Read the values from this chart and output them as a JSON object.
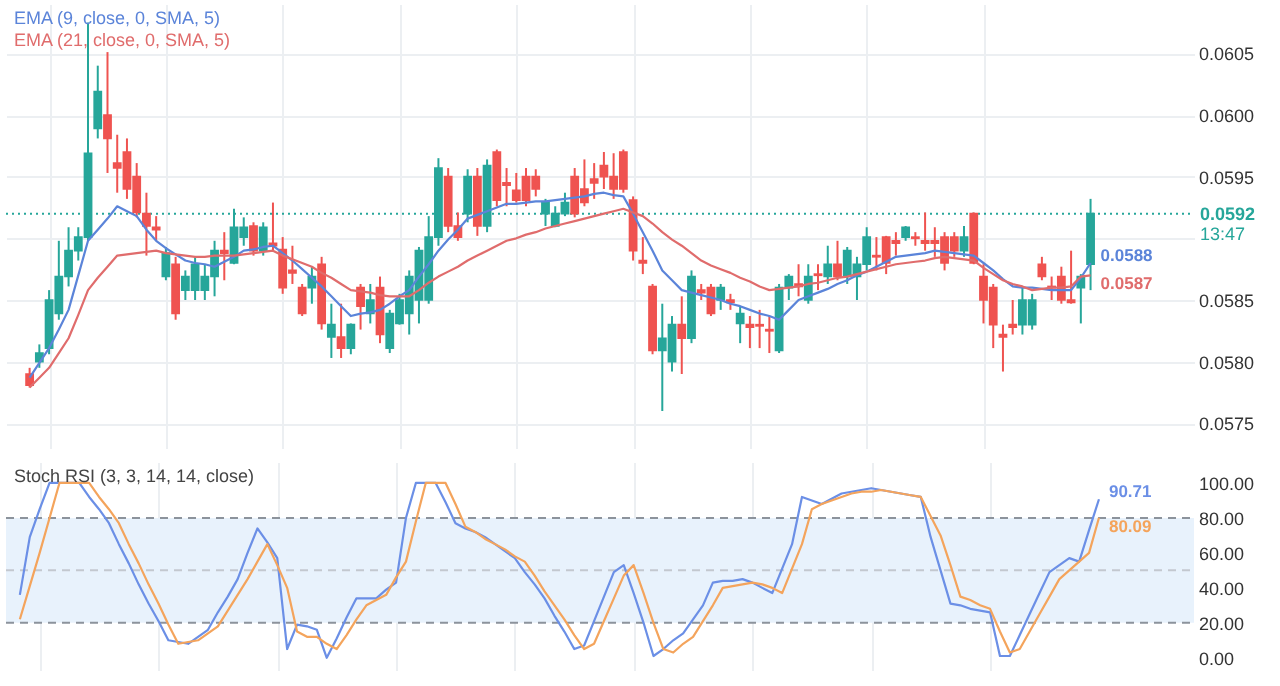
{
  "chart_data": [
    {
      "type": "candlestick",
      "categories": [
        null,
        null,
        null,
        null,
        null,
        null,
        null,
        null,
        null,
        null,
        null,
        null,
        null,
        null,
        null,
        null,
        null,
        null,
        null,
        null,
        null,
        null,
        null,
        null,
        null,
        null,
        null,
        null,
        null,
        null,
        null,
        null,
        null,
        null,
        null,
        null,
        null,
        null,
        null,
        null,
        null,
        null,
        null,
        null,
        null,
        null,
        null,
        null,
        null,
        null,
        null,
        null,
        null,
        null,
        null,
        null,
        null,
        null,
        null,
        null,
        null,
        null,
        null,
        null,
        null,
        null,
        null,
        null,
        null,
        null,
        null,
        null,
        null,
        null,
        null,
        null,
        null,
        null,
        null,
        null,
        null,
        null,
        null,
        null,
        null,
        null,
        null,
        null,
        null,
        null,
        null,
        null,
        null,
        null,
        null,
        null,
        null,
        null,
        null,
        null,
        null,
        null,
        null,
        null,
        null,
        null,
        null,
        null,
        null,
        null
      ],
      "ohlc": [
        [
          0.0579,
          0.05795,
          0.05779,
          0.05781
        ],
        [
          0.058,
          0.05814,
          0.05795,
          0.05807
        ],
        [
          0.05811,
          0.05858,
          0.05806,
          0.0585
        ],
        [
          0.05839,
          0.05898,
          0.05834,
          0.05869
        ],
        [
          0.05869,
          0.05909,
          0.05861,
          0.0589
        ],
        [
          0.0589,
          0.05909,
          0.05882,
          0.05901
        ],
        [
          0.05901,
          0.06075,
          0.05898,
          0.05969
        ],
        [
          0.05989,
          0.0604,
          0.05981,
          0.06019
        ],
        [
          0.06,
          0.06051,
          0.05953,
          0.05981
        ],
        [
          0.05961,
          0.05984,
          0.05937,
          0.05957
        ],
        [
          0.0597,
          0.05981,
          0.05932,
          0.0594
        ],
        [
          0.0595,
          0.05961,
          0.05917,
          0.05921
        ],
        [
          0.0592,
          0.05937,
          0.05886,
          0.0591
        ],
        [
          0.05909,
          0.05918,
          0.05898,
          0.05907
        ],
        [
          0.05869,
          0.05893,
          0.05866,
          0.05888
        ],
        [
          0.05879,
          0.05885,
          0.05834,
          0.05839
        ],
        [
          0.05858,
          0.05874,
          0.0585,
          0.05869
        ],
        [
          0.05858,
          0.05885,
          0.0585,
          0.05879
        ],
        [
          0.05858,
          0.05879,
          0.0585,
          0.05869
        ],
        [
          0.05869,
          0.05898,
          0.05853,
          0.0589
        ],
        [
          0.0589,
          0.05905,
          0.05866,
          0.05888
        ],
        [
          0.0588,
          0.05924,
          0.05879,
          0.05909
        ],
        [
          0.05901,
          0.05917,
          0.05894,
          0.05909
        ],
        [
          0.0591,
          0.05913,
          0.05886,
          0.0589
        ],
        [
          0.0589,
          0.05913,
          0.05886,
          0.05909
        ],
        [
          0.05896,
          0.05929,
          0.0589,
          0.05894
        ],
        [
          0.05891,
          0.05901,
          0.05855,
          0.0586
        ],
        [
          0.05874,
          0.05894,
          0.05863,
          0.05872
        ],
        [
          0.0586,
          0.05863,
          0.05837,
          0.05839
        ],
        [
          0.0586,
          0.05877,
          0.05847,
          0.05869
        ],
        [
          0.05879,
          0.05885,
          0.05826,
          0.05831
        ],
        [
          0.0582,
          0.05847,
          0.05803,
          0.0583
        ],
        [
          0.0582,
          0.05847,
          0.05803,
          0.05811
        ],
        [
          0.05811,
          0.05831,
          0.05806,
          0.0583
        ],
        [
          0.0586,
          0.05863,
          0.05826,
          0.05845
        ],
        [
          0.05839,
          0.05863,
          0.05831,
          0.0585
        ],
        [
          0.0586,
          0.05869,
          0.05815,
          0.05822
        ],
        [
          0.05811,
          0.05842,
          0.05807,
          0.05839
        ],
        [
          0.05831,
          0.05855,
          0.0583,
          0.0585
        ],
        [
          0.05839,
          0.05874,
          0.05822,
          0.05869
        ],
        [
          0.0585,
          0.05893,
          0.05831,
          0.0589
        ],
        [
          0.0585,
          0.05918,
          0.05847,
          0.05901
        ],
        [
          0.05901,
          0.05965,
          0.05894,
          0.05957
        ],
        [
          0.0595,
          0.05957,
          0.05905,
          0.0591
        ],
        [
          0.0591,
          0.05921,
          0.05898,
          0.05901
        ],
        [
          0.0592,
          0.05956,
          0.05913,
          0.0595
        ],
        [
          0.0595,
          0.05957,
          0.05902,
          0.0591
        ],
        [
          0.0591,
          0.05964,
          0.05905,
          0.05959
        ],
        [
          0.0597,
          0.05972,
          0.05926,
          0.05931
        ],
        [
          0.05945,
          0.05957,
          0.05926,
          0.05943
        ],
        [
          0.05939,
          0.05953,
          0.05929,
          0.05931
        ],
        [
          0.0595,
          0.05957,
          0.05926,
          0.05931
        ],
        [
          0.0595,
          0.05956,
          0.05934,
          0.0594
        ],
        [
          0.0592,
          0.05932,
          0.0591,
          0.05929
        ],
        [
          0.0591,
          0.05926,
          0.05909,
          0.0592
        ],
        [
          0.0592,
          0.05937,
          0.05918,
          0.05929
        ],
        [
          0.0595,
          0.05957,
          0.05917,
          0.0592
        ],
        [
          0.0594,
          0.05964,
          0.05926,
          0.05929
        ],
        [
          0.05948,
          0.05961,
          0.05932,
          0.05945
        ],
        [
          0.05959,
          0.0597,
          0.0594,
          0.0595
        ],
        [
          0.0595,
          0.05969,
          0.05932,
          0.0594
        ],
        [
          0.0597,
          0.05972,
          0.05937,
          0.0594
        ],
        [
          0.05931,
          0.05934,
          0.05882,
          0.0589
        ],
        [
          0.05882,
          0.05901,
          0.05871,
          0.0588
        ],
        [
          0.05861,
          0.05863,
          0.05806,
          0.05809
        ],
        [
          0.05809,
          0.05847,
          0.0576,
          0.05819
        ],
        [
          0.058,
          0.05837,
          0.05792,
          0.0583
        ],
        [
          0.0583,
          0.05853,
          0.0579,
          0.05819
        ],
        [
          0.05819,
          0.05874,
          0.05815,
          0.05869
        ],
        [
          0.05858,
          0.05863,
          0.0585,
          0.05856
        ],
        [
          0.0586,
          0.05863,
          0.05837,
          0.05839
        ],
        [
          0.0585,
          0.05863,
          0.05842,
          0.0586
        ],
        [
          0.0585,
          0.05855,
          0.05842,
          0.05848
        ],
        [
          0.05831,
          0.05845,
          0.05815,
          0.05839
        ],
        [
          0.0583,
          0.05837,
          0.05811,
          0.05828
        ],
        [
          0.0583,
          0.05842,
          0.05811,
          0.05829
        ],
        [
          0.05826,
          0.05837,
          0.05807,
          0.05825
        ],
        [
          0.05809,
          0.05863,
          0.05807,
          0.0586
        ],
        [
          0.0586,
          0.05871,
          0.0585,
          0.05869
        ],
        [
          0.05863,
          0.05879,
          0.05853,
          0.05861
        ],
        [
          0.0585,
          0.05879,
          0.05847,
          0.05869
        ],
        [
          0.05871,
          0.05879,
          0.05858,
          0.0587
        ],
        [
          0.05869,
          0.05894,
          0.05863,
          0.05879
        ],
        [
          0.05879,
          0.05898,
          0.05866,
          0.05869
        ],
        [
          0.05869,
          0.05893,
          0.05863,
          0.0589
        ],
        [
          0.05869,
          0.05885,
          0.0585,
          0.05879
        ],
        [
          0.05879,
          0.05909,
          0.05874,
          0.05901
        ],
        [
          0.05886,
          0.05901,
          0.05874,
          0.05885
        ],
        [
          0.05901,
          0.05902,
          0.05871,
          0.0588
        ],
        [
          0.05898,
          0.05905,
          0.05886,
          0.05896
        ],
        [
          0.05901,
          0.0591,
          0.05898,
          0.05909
        ],
        [
          0.05901,
          0.05905,
          0.05894,
          0.059
        ],
        [
          0.05898,
          0.05921,
          0.0589,
          0.05896
        ],
        [
          0.05898,
          0.05909,
          0.05885,
          0.05896
        ],
        [
          0.05901,
          0.05905,
          0.05874,
          0.0588
        ],
        [
          0.05901,
          0.05905,
          0.05885,
          0.0589
        ],
        [
          0.0589,
          0.0591,
          0.05885,
          0.05901
        ],
        [
          0.0592,
          0.05921,
          0.05879,
          0.0588
        ],
        [
          0.05869,
          0.05879,
          0.05831,
          0.0585
        ],
        [
          0.0586,
          0.05863,
          0.05811,
          0.0583
        ],
        [
          0.05822,
          0.0583,
          0.05792,
          0.0582
        ],
        [
          0.0583,
          0.0585,
          0.05822,
          0.05828
        ],
        [
          0.0583,
          0.05861,
          0.05822,
          0.0585
        ],
        [
          0.0583,
          0.05855,
          0.05826,
          0.0585
        ],
        [
          0.05879,
          0.05885,
          0.05866,
          0.05869
        ],
        [
          0.05861,
          0.05869,
          0.0585,
          0.0586
        ],
        [
          0.05869,
          0.05877,
          0.05847,
          0.0585
        ],
        [
          0.0585,
          0.0589,
          0.05847,
          0.05848
        ],
        [
          0.0586,
          0.05871,
          0.05831,
          0.05869
        ],
        [
          0.05879,
          0.05932,
          0.05858,
          0.0592
        ]
      ],
      "colors": [
        "#ef5350",
        "#26a69a",
        "#26a69a",
        "#26a69a",
        "#26a69a",
        "#26a69a",
        "#26a69a",
        "#26a69a",
        "#ef5350",
        "#ef5350",
        "#ef5350",
        "#ef5350",
        "#ef5350",
        "#ef5350",
        "#26a69a",
        "#ef5350",
        "#26a69a",
        "#26a69a",
        "#26a69a",
        "#26a69a",
        "#ef5350",
        "#26a69a",
        "#26a69a",
        "#ef5350",
        "#26a69a",
        "#ef5350",
        "#ef5350",
        "#ef5350",
        "#ef5350",
        "#26a69a",
        "#ef5350",
        "#26a69a",
        "#ef5350",
        "#26a69a",
        "#ef5350",
        "#26a69a",
        "#ef5350",
        "#26a69a",
        "#26a69a",
        "#26a69a",
        "#26a69a",
        "#26a69a",
        "#26a69a",
        "#ef5350",
        "#ef5350",
        "#26a69a",
        "#ef5350",
        "#26a69a",
        "#ef5350",
        "#ef5350",
        "#ef5350",
        "#ef5350",
        "#ef5350",
        "#26a69a",
        "#26a69a",
        "#26a69a",
        "#ef5350",
        "#ef5350",
        "#ef5350",
        "#ef5350",
        "#ef5350",
        "#ef5350",
        "#ef5350",
        "#ef5350",
        "#ef5350",
        "#26a69a",
        "#26a69a",
        "#ef5350",
        "#26a69a",
        "#ef5350",
        "#ef5350",
        "#26a69a",
        "#ef5350",
        "#26a69a",
        "#ef5350",
        "#ef5350",
        "#ef5350",
        "#26a69a",
        "#26a69a",
        "#ef5350",
        "#26a69a",
        "#ef5350",
        "#26a69a",
        "#ef5350",
        "#26a69a",
        "#26a69a",
        "#26a69a",
        "#ef5350",
        "#ef5350",
        "#ef5350",
        "#26a69a",
        "#ef5350",
        "#ef5350",
        "#ef5350",
        "#ef5350",
        "#ef5350",
        "#26a69a",
        "#ef5350",
        "#ef5350",
        "#ef5350",
        "#ef5350",
        "#ef5350",
        "#26a69a",
        "#26a69a",
        "#ef5350",
        "#ef5350",
        "#ef5350",
        "#ef5350",
        "#26a69a",
        "#26a69a"
      ],
      "series": [
        {
          "name": "EMA (9, close, 0, SMA, 5)",
          "type": "line",
          "color": "#5b84d9",
          "values": [
            0.05787,
            0.05799,
            0.05811,
            0.05826,
            0.05842,
            0.0587,
            0.05898,
            0.05907,
            0.05916,
            0.05926,
            0.05922,
            0.05918,
            0.05907,
            0.05898,
            0.05892,
            0.05887,
            0.05882,
            0.0588,
            0.05879,
            0.05877,
            0.05881,
            0.05885,
            0.0589,
            0.05891,
            0.05893,
            0.05894,
            0.05888,
            0.05882,
            0.05875,
            0.05868,
            0.05861,
            0.05853,
            0.05845,
            0.05837,
            0.05839,
            0.0584,
            0.05842,
            0.05847,
            0.05853,
            0.05858,
            0.05869,
            0.05879,
            0.0589,
            0.05899,
            0.05907,
            0.05916,
            0.05919,
            0.05922,
            0.05925,
            0.05928,
            0.05928,
            0.05929,
            0.0593,
            0.0593,
            0.05931,
            0.05932,
            0.05933,
            0.05934,
            0.05936,
            0.05937,
            0.05935,
            0.05934,
            0.0592,
            0.05905,
            0.0589,
            0.05874,
            0.05866,
            0.05858,
            0.05856,
            0.05854,
            0.05852,
            0.0585,
            0.05847,
            0.05845,
            0.05842,
            0.05839,
            0.05837,
            0.05834,
            0.05842,
            0.0585,
            0.05853,
            0.05856,
            0.05859,
            0.05863,
            0.05866,
            0.0587,
            0.05873,
            0.05877,
            0.05881,
            0.05885,
            0.05886,
            0.05887,
            0.05888,
            0.0589,
            0.05889,
            0.05888,
            0.05887,
            0.05886,
            0.0588,
            0.05874,
            0.05867,
            0.05861,
            0.0586,
            0.0586,
            0.05859,
            0.05858,
            0.05858,
            0.05858,
            0.05868,
            0.0588
          ],
          "value_labels": [
            null,
            null,
            null,
            null,
            null,
            null,
            null,
            null,
            null,
            null,
            null,
            null,
            null,
            null,
            null,
            null,
            null,
            null,
            null,
            null,
            null,
            null,
            null,
            null,
            null,
            null,
            null,
            null,
            null,
            null,
            null,
            null,
            null,
            null,
            null,
            null,
            null,
            null,
            null,
            null,
            null,
            null,
            null,
            null,
            null,
            null,
            null,
            null,
            null,
            null,
            null,
            null,
            null,
            null,
            null,
            null,
            null,
            null,
            null,
            null,
            null,
            null,
            null,
            null,
            null,
            null,
            null,
            null,
            null,
            null,
            null,
            null,
            null,
            null,
            null,
            null,
            null,
            null,
            null,
            null,
            null,
            null,
            null,
            null,
            null,
            null,
            null,
            null,
            null,
            null,
            null,
            null,
            null,
            null,
            null,
            null,
            null,
            null,
            null,
            null,
            null,
            null,
            null,
            null,
            null,
            null,
            null,
            null,
            null,
            "0.0588"
          ]
        },
        {
          "name": "EMA (21, close, 0, SMA, 5)",
          "type": "line",
          "color": "#e06c6c",
          "values": [
            0.05779,
            0.05787,
            0.05795,
            0.05807,
            0.05819,
            0.05838,
            0.05858,
            0.05868,
            0.05877,
            0.05886,
            0.05887,
            0.05888,
            0.05889,
            0.0589,
            0.05888,
            0.05887,
            0.05886,
            0.05885,
            0.05885,
            0.05886,
            0.05886,
            0.05886,
            0.05887,
            0.05888,
            0.05889,
            0.0589,
            0.05886,
            0.05883,
            0.0588,
            0.05877,
            0.05872,
            0.05868,
            0.05863,
            0.05858,
            0.05857,
            0.05856,
            0.05854,
            0.05853,
            0.05853,
            0.05853,
            0.05858,
            0.05864,
            0.05869,
            0.05873,
            0.05877,
            0.05882,
            0.05886,
            0.0589,
            0.05894,
            0.05898,
            0.059,
            0.05903,
            0.05905,
            0.05908,
            0.0591,
            0.05912,
            0.05914,
            0.05916,
            0.05918,
            0.0592,
            0.05922,
            0.05924,
            0.05921,
            0.05918,
            0.05912,
            0.05905,
            0.05899,
            0.05894,
            0.05888,
            0.05882,
            0.05878,
            0.05875,
            0.05872,
            0.05868,
            0.05865,
            0.05861,
            0.05858,
            0.05859,
            0.0586,
            0.05861,
            0.05863,
            0.05864,
            0.05866,
            0.05868,
            0.05869,
            0.05871,
            0.05873,
            0.05875,
            0.05877,
            0.05879,
            0.0588,
            0.05881,
            0.05882,
            0.05884,
            0.05885,
            0.05884,
            0.05883,
            0.05882,
            0.05876,
            0.05871,
            0.05866,
            0.05863,
            0.05861,
            0.05858,
            0.05859,
            0.0586,
            0.0586,
            0.05861,
            0.05869,
            0.0587
          ],
          "value_labels": [
            null,
            null,
            null,
            null,
            null,
            null,
            null,
            null,
            null,
            null,
            null,
            null,
            null,
            null,
            null,
            null,
            null,
            null,
            null,
            null,
            null,
            null,
            null,
            null,
            null,
            null,
            null,
            null,
            null,
            null,
            null,
            null,
            null,
            null,
            null,
            null,
            null,
            null,
            null,
            null,
            null,
            null,
            null,
            null,
            null,
            null,
            null,
            null,
            null,
            null,
            null,
            null,
            null,
            null,
            null,
            null,
            null,
            null,
            null,
            null,
            null,
            null,
            null,
            null,
            null,
            null,
            null,
            null,
            null,
            null,
            null,
            null,
            null,
            null,
            null,
            null,
            null,
            null,
            null,
            null,
            null,
            null,
            null,
            null,
            null,
            null,
            null,
            null,
            null,
            null,
            null,
            null,
            null,
            null,
            null,
            null,
            null,
            null,
            null,
            null,
            null,
            null,
            null,
            null,
            null,
            null,
            null,
            null,
            null,
            "0.0587"
          ]
        }
      ],
      "ylim": [
        0.0573,
        0.0609
      ],
      "yticks": [
        0.0575,
        {
          "value": 0.058,
          "label": "0.0580"
        },
        0.0585,
        {
          "value": 0.059,
          "label": null
        },
        0.0595,
        {
          "value": 0.06,
          "label": "0.0600"
        },
        0.0605
      ],
      "grid": true,
      "ref_lines": [
        {
          "axis": "y",
          "value": 0.0592,
          "label": "0.0592",
          "color": "#26a69a",
          "line_style": "dotted"
        }
      ],
      "annotations": [
        "13:47"
      ]
    },
    {
      "type": "line",
      "title": "Stoch RSI (3, 3, 14, 14, close)",
      "categories": [
        null,
        null,
        null,
        null,
        null,
        null,
        null,
        null,
        null,
        null,
        null,
        null,
        null,
        null,
        null,
        null,
        null,
        null,
        null,
        null,
        null,
        null,
        null,
        null,
        null,
        null,
        null,
        null,
        null,
        null,
        null,
        null,
        null,
        null,
        null,
        null,
        null,
        null,
        null,
        null,
        null,
        null,
        null,
        null,
        null,
        null,
        null,
        null,
        null,
        null,
        null,
        null,
        null,
        null,
        null,
        null,
        null,
        null,
        null,
        null,
        null,
        null,
        null,
        null,
        null,
        null,
        null,
        null,
        null,
        null,
        null,
        null,
        null,
        null,
        null,
        null,
        null,
        null,
        null,
        null,
        null,
        null,
        null,
        null,
        null,
        null,
        null,
        null,
        null,
        null,
        null,
        null,
        null,
        null,
        null,
        null,
        null,
        null,
        null,
        null,
        null,
        null,
        null,
        null,
        null,
        null,
        null,
        null,
        null,
        null
      ],
      "series": [
        {
          "color": "#6b8fe6",
          "values": [
            36,
            69,
            85,
            100,
            100,
            100,
            100,
            92,
            85,
            77,
            65,
            54,
            42,
            31,
            21,
            10,
            9,
            8,
            12,
            16,
            26,
            35,
            45,
            60,
            74,
            66,
            57,
            5,
            19,
            18,
            16,
            0,
            11,
            23,
            34,
            34,
            34,
            39,
            43,
            80,
            100,
            100,
            100,
            89,
            77,
            74,
            72,
            69,
            65,
            61,
            57,
            49,
            42,
            34,
            24,
            15,
            5,
            7,
            21,
            35,
            49,
            53,
            37,
            20,
            1,
            5,
            10,
            14,
            22,
            30,
            43,
            44,
            44,
            45,
            43,
            40,
            37,
            51,
            65,
            92,
            90,
            88,
            91,
            94,
            95,
            96,
            97,
            96,
            95,
            94,
            93,
            92,
            69,
            50,
            31,
            30,
            28,
            27,
            26,
            1,
            1,
            13,
            25,
            37,
            49,
            53,
            57,
            55,
            73,
            90.71
          ],
          "value_labels": [
            null,
            null,
            null,
            null,
            null,
            null,
            null,
            null,
            null,
            null,
            null,
            null,
            null,
            null,
            null,
            null,
            null,
            null,
            null,
            null,
            null,
            null,
            null,
            null,
            null,
            null,
            null,
            null,
            null,
            null,
            null,
            null,
            null,
            null,
            null,
            null,
            null,
            null,
            null,
            null,
            null,
            null,
            null,
            null,
            null,
            null,
            null,
            null,
            null,
            null,
            null,
            null,
            null,
            null,
            null,
            null,
            null,
            null,
            null,
            null,
            null,
            null,
            null,
            null,
            null,
            null,
            null,
            null,
            null,
            null,
            null,
            null,
            null,
            null,
            null,
            null,
            null,
            null,
            null,
            null,
            null,
            null,
            null,
            null,
            null,
            null,
            null,
            null,
            null,
            null,
            null,
            null,
            null,
            null,
            null,
            null,
            null,
            null,
            null,
            null,
            null,
            null,
            null,
            null,
            null,
            null,
            null,
            null,
            null,
            "90.71"
          ]
        },
        {
          "color": "#f4a45c",
          "values": [
            22,
            41,
            60,
            80,
            100,
            100,
            100,
            100,
            92,
            85,
            77,
            65,
            54,
            42,
            31,
            19,
            8,
            9,
            10,
            14,
            18,
            27,
            36,
            45,
            55,
            65,
            53,
            40,
            15,
            12,
            12,
            8,
            5,
            13,
            22,
            30,
            33,
            36,
            46,
            55,
            78,
            100,
            100,
            100,
            88,
            75,
            72,
            68,
            65,
            62,
            58,
            55,
            47,
            38,
            30,
            22,
            13,
            5,
            8,
            21,
            34,
            47,
            53,
            37,
            20,
            5,
            3,
            8,
            12,
            21,
            30,
            40,
            41,
            42,
            43,
            42,
            40,
            37,
            51,
            65,
            85,
            88,
            90,
            92,
            94,
            95,
            95,
            96,
            95,
            94,
            93,
            92,
            81,
            70,
            53,
            35,
            33,
            30,
            28,
            15,
            3,
            5,
            15,
            25,
            35,
            45,
            50,
            55,
            60,
            80.09
          ],
          "value_labels": [
            null,
            null,
            null,
            null,
            null,
            null,
            null,
            null,
            null,
            null,
            null,
            null,
            null,
            null,
            null,
            null,
            null,
            null,
            null,
            null,
            null,
            null,
            null,
            null,
            null,
            null,
            null,
            null,
            null,
            null,
            null,
            null,
            null,
            null,
            null,
            null,
            null,
            null,
            null,
            null,
            null,
            null,
            null,
            null,
            null,
            null,
            null,
            null,
            null,
            null,
            null,
            null,
            null,
            null,
            null,
            null,
            null,
            null,
            null,
            null,
            null,
            null,
            null,
            null,
            null,
            null,
            null,
            null,
            null,
            null,
            null,
            null,
            null,
            null,
            null,
            null,
            null,
            null,
            null,
            null,
            null,
            null,
            null,
            null,
            null,
            null,
            null,
            null,
            null,
            null,
            null,
            null,
            null,
            null,
            null,
            null,
            null,
            null,
            null,
            null,
            null,
            null,
            null,
            null,
            null,
            null,
            null,
            null,
            null,
            "80.09"
          ]
        }
      ],
      "ylim": [
        -7,
        112
      ],
      "yticks": [
        {
          "value": 0,
          "label": "0.00"
        },
        {
          "value": 20,
          "label": "20.00"
        },
        {
          "value": 40,
          "label": "40.00"
        },
        {
          "value": 60,
          "label": "60.00"
        },
        {
          "value": 80,
          "label": "80.00"
        },
        {
          "value": 100,
          "label": "100.00"
        }
      ],
      "grid": "x",
      "bands": [
        {
          "axis": "y",
          "from": 20,
          "to": 80,
          "color": "#e8f2fc"
        }
      ],
      "ref_lines": [
        {
          "axis": "y",
          "value": 20,
          "color": "#8c939c",
          "line_style": "dashed"
        },
        {
          "axis": "y",
          "value": 50,
          "color": "#c3c8cf",
          "line_style": "dashed"
        },
        {
          "axis": "y",
          "value": 80,
          "color": "#8c939c",
          "line_style": "dashed"
        }
      ]
    }
  ]
}
